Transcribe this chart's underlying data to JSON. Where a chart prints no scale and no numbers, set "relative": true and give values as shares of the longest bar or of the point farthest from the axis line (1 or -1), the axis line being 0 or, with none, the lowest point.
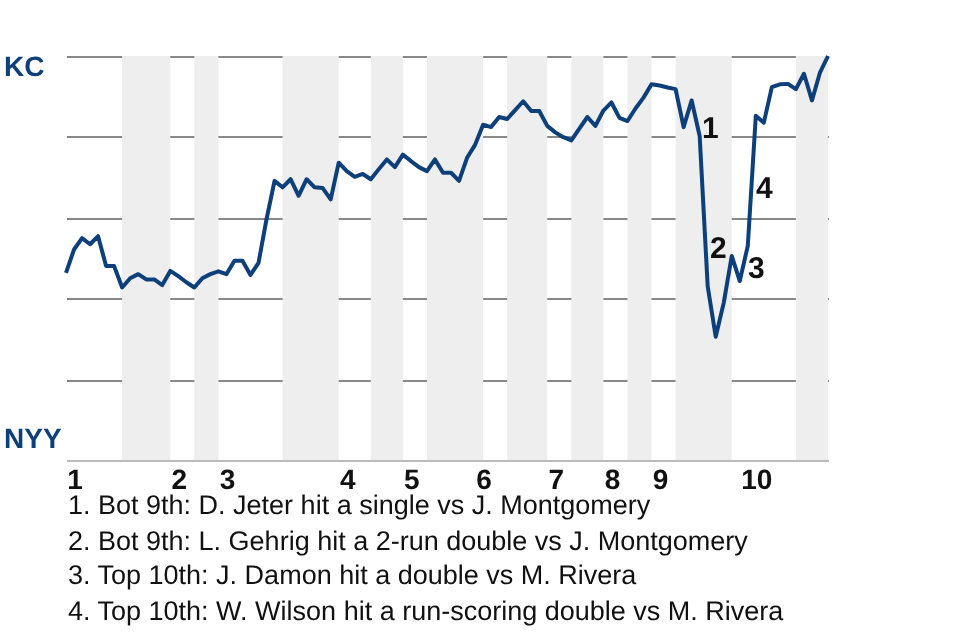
{
  "chart_data": {
    "type": "line",
    "relative": true,
    "categories": [
      null,
      "1",
      null,
      null,
      null,
      null,
      null,
      null,
      null,
      null,
      null,
      null,
      null,
      null,
      "2",
      null,
      null,
      null,
      null,
      null,
      "3",
      null,
      null,
      null,
      null,
      null,
      null,
      null,
      null,
      null,
      null,
      null,
      null,
      null,
      null,
      "4",
      null,
      null,
      null,
      null,
      null,
      null,
      null,
      "5",
      null,
      null,
      null,
      null,
      null,
      null,
      null,
      null,
      "6",
      null,
      null,
      null,
      null,
      null,
      null,
      null,
      null,
      "7",
      null,
      null,
      null,
      null,
      null,
      null,
      "8",
      null,
      null,
      null,
      null,
      null,
      "9",
      null,
      null,
      null,
      null,
      null,
      null,
      null,
      null,
      null,
      null,
      null,
      "10",
      null,
      null,
      null,
      null,
      null,
      null,
      null,
      null,
      null
    ],
    "series": [
      {
        "color": "#0d3f7a",
        "values": [
          0.463,
          0.521,
          0.549,
          0.534,
          0.554,
          0.48,
          0.48,
          0.427,
          0.45,
          0.46,
          0.447,
          0.447,
          0.433,
          0.468,
          0.455,
          0.44,
          0.427,
          0.45,
          0.46,
          0.467,
          0.46,
          0.493,
          0.493,
          0.458,
          0.488,
          0.596,
          0.691,
          0.675,
          0.695,
          0.654,
          0.695,
          0.675,
          0.673,
          0.645,
          0.736,
          0.715,
          0.701,
          0.708,
          0.695,
          0.72,
          0.744,
          0.725,
          0.756,
          0.74,
          0.725,
          0.715,
          0.744,
          0.711,
          0.711,
          0.691,
          0.748,
          0.78,
          0.83,
          0.824,
          0.849,
          0.844,
          0.866,
          0.888,
          0.864,
          0.864,
          0.827,
          0.811,
          0.799,
          0.791,
          0.82,
          0.849,
          0.827,
          0.865,
          0.885,
          0.847,
          0.839,
          0.87,
          0.897,
          0.93,
          0.927,
          0.922,
          0.918,
          0.824,
          0.89,
          0.802,
          0.43,
          0.305,
          0.389,
          0.505,
          0.443,
          0.53,
          0.852,
          0.835,
          0.923,
          0.93,
          0.931,
          0.918,
          0.956,
          0.89,
          0.959,
          1.0
        ]
      }
    ],
    "grid": "y",
    "annotations": [
      "KC",
      "NYY",
      "1",
      "2",
      "3",
      "4",
      "1. Bot 9th: D. Jeter hit a single vs J. Montgomery",
      "2. Bot 9th: L. Gehrig hit a 2-run double vs J. Montgomery",
      "3. Top 10th: J. Damon hit a double vs M. Rivera",
      "4. Top 10th: W. Wilson hit a run-scoring double vs M. Rivera"
    ]
  }
}
